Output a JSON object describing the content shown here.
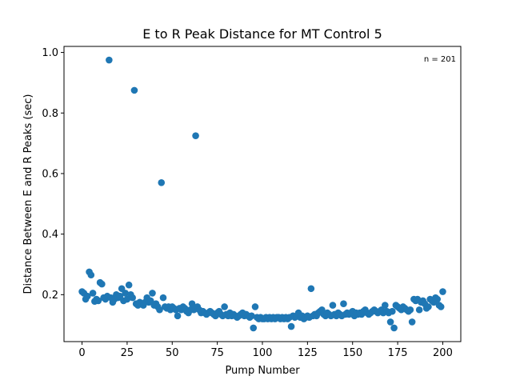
{
  "chart_data": {
    "type": "scatter",
    "title": "E to R Peak Distance for MT Control 5",
    "xlabel": "Pump Number",
    "ylabel": "Distance Between E and R Peaks (sec)",
    "annotation": "n = 201",
    "xlim": [
      -10,
      210
    ],
    "ylim": [
      0.045,
      1.02
    ],
    "xticks": [
      0,
      25,
      50,
      75,
      100,
      125,
      150,
      175,
      200
    ],
    "xtick_labels": [
      "0",
      "25",
      "50",
      "75",
      "100",
      "125",
      "150",
      "175",
      "200"
    ],
    "yticks": [
      0.2,
      0.4,
      0.6,
      0.8,
      1.0
    ],
    "ytick_labels": [
      "0.2",
      "0.4",
      "0.6",
      "0.8",
      "1.0"
    ],
    "grid": false,
    "marker_color": "#1f77b4",
    "series": [
      {
        "x": [
          0,
          1,
          2,
          3,
          4,
          5,
          6,
          7,
          8,
          9,
          10,
          11,
          12,
          13,
          14,
          15,
          16,
          17,
          18,
          19,
          20,
          21,
          22,
          23,
          24,
          25,
          26,
          27,
          28,
          29,
          30,
          31,
          32,
          33,
          34,
          35,
          36,
          37,
          38,
          39,
          40,
          41,
          42,
          43,
          44,
          45,
          46,
          47,
          48,
          49,
          50,
          51,
          52,
          53,
          54,
          55,
          56,
          57,
          58,
          59,
          60,
          61,
          62,
          63,
          64,
          65,
          66,
          67,
          68,
          69,
          70,
          71,
          72,
          73,
          74,
          75,
          76,
          77,
          78,
          79,
          80,
          81,
          82,
          83,
          84,
          85,
          86,
          87,
          88,
          89,
          90,
          91,
          92,
          93,
          94,
          95,
          96,
          97,
          98,
          99,
          100,
          101,
          102,
          103,
          104,
          105,
          106,
          107,
          108,
          109,
          110,
          111,
          112,
          113,
          114,
          115,
          116,
          117,
          118,
          119,
          120,
          121,
          122,
          123,
          124,
          125,
          126,
          127,
          128,
          129,
          130,
          131,
          132,
          133,
          134,
          135,
          136,
          137,
          138,
          139,
          140,
          141,
          142,
          143,
          144,
          145,
          146,
          147,
          148,
          149,
          150,
          151,
          152,
          153,
          154,
          155,
          156,
          157,
          158,
          159,
          160,
          161,
          162,
          163,
          164,
          165,
          166,
          167,
          168,
          169,
          170,
          171,
          172,
          173,
          174,
          175,
          176,
          177,
          178,
          179,
          180,
          181,
          182,
          183,
          184,
          185,
          186,
          187,
          188,
          189,
          190,
          191,
          192,
          193,
          194,
          195,
          196,
          197,
          198,
          199,
          200
        ],
        "y": [
          0.21,
          0.205,
          0.185,
          0.195,
          0.275,
          0.265,
          0.205,
          0.178,
          0.185,
          0.18,
          0.24,
          0.235,
          0.19,
          0.185,
          0.195,
          0.975,
          0.19,
          0.175,
          0.185,
          0.2,
          0.19,
          0.195,
          0.22,
          0.18,
          0.205,
          0.185,
          0.232,
          0.2,
          0.19,
          0.875,
          0.17,
          0.165,
          0.175,
          0.17,
          0.165,
          0.175,
          0.19,
          0.175,
          0.18,
          0.205,
          0.165,
          0.17,
          0.16,
          0.15,
          0.57,
          0.19,
          0.16,
          0.155,
          0.16,
          0.15,
          0.16,
          0.155,
          0.15,
          0.13,
          0.155,
          0.15,
          0.16,
          0.155,
          0.145,
          0.14,
          0.15,
          0.17,
          0.15,
          0.725,
          0.16,
          0.15,
          0.14,
          0.145,
          0.14,
          0.135,
          0.14,
          0.145,
          0.14,
          0.135,
          0.13,
          0.14,
          0.145,
          0.135,
          0.13,
          0.16,
          0.135,
          0.13,
          0.14,
          0.13,
          0.135,
          0.13,
          0.125,
          0.13,
          0.135,
          0.14,
          0.13,
          0.135,
          0.13,
          0.125,
          0.13,
          0.09,
          0.16,
          0.125,
          0.12,
          0.125,
          0.12,
          0.12,
          0.125,
          0.12,
          0.125,
          0.12,
          0.125,
          0.12,
          0.125,
          0.125,
          0.12,
          0.125,
          0.12,
          0.125,
          0.12,
          0.125,
          0.095,
          0.13,
          0.125,
          0.13,
          0.14,
          0.125,
          0.13,
          0.12,
          0.125,
          0.13,
          0.125,
          0.22,
          0.13,
          0.135,
          0.13,
          0.14,
          0.145,
          0.15,
          0.135,
          0.13,
          0.14,
          0.135,
          0.13,
          0.165,
          0.135,
          0.13,
          0.14,
          0.135,
          0.13,
          0.17,
          0.135,
          0.14,
          0.135,
          0.14,
          0.145,
          0.13,
          0.14,
          0.135,
          0.14,
          0.135,
          0.145,
          0.15,
          0.14,
          0.135,
          0.14,
          0.145,
          0.15,
          0.145,
          0.14,
          0.145,
          0.15,
          0.14,
          0.165,
          0.145,
          0.14,
          0.11,
          0.145,
          0.09,
          0.165,
          0.16,
          0.155,
          0.15,
          0.16,
          0.155,
          0.15,
          0.145,
          0.15,
          0.11,
          0.185,
          0.18,
          0.185,
          0.15,
          0.175,
          0.18,
          0.17,
          0.155,
          0.16,
          0.185,
          0.18,
          0.175,
          0.19,
          0.185,
          0.165,
          0.16,
          0.21
        ]
      }
    ]
  }
}
